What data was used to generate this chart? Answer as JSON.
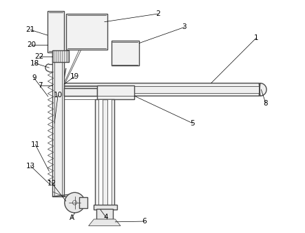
{
  "bg_color": "#ffffff",
  "line_color": "#4a4a4a",
  "lw": 1.0,
  "tlw": 0.6,
  "figsize": [
    4.43,
    3.38
  ],
  "dpi": 100
}
